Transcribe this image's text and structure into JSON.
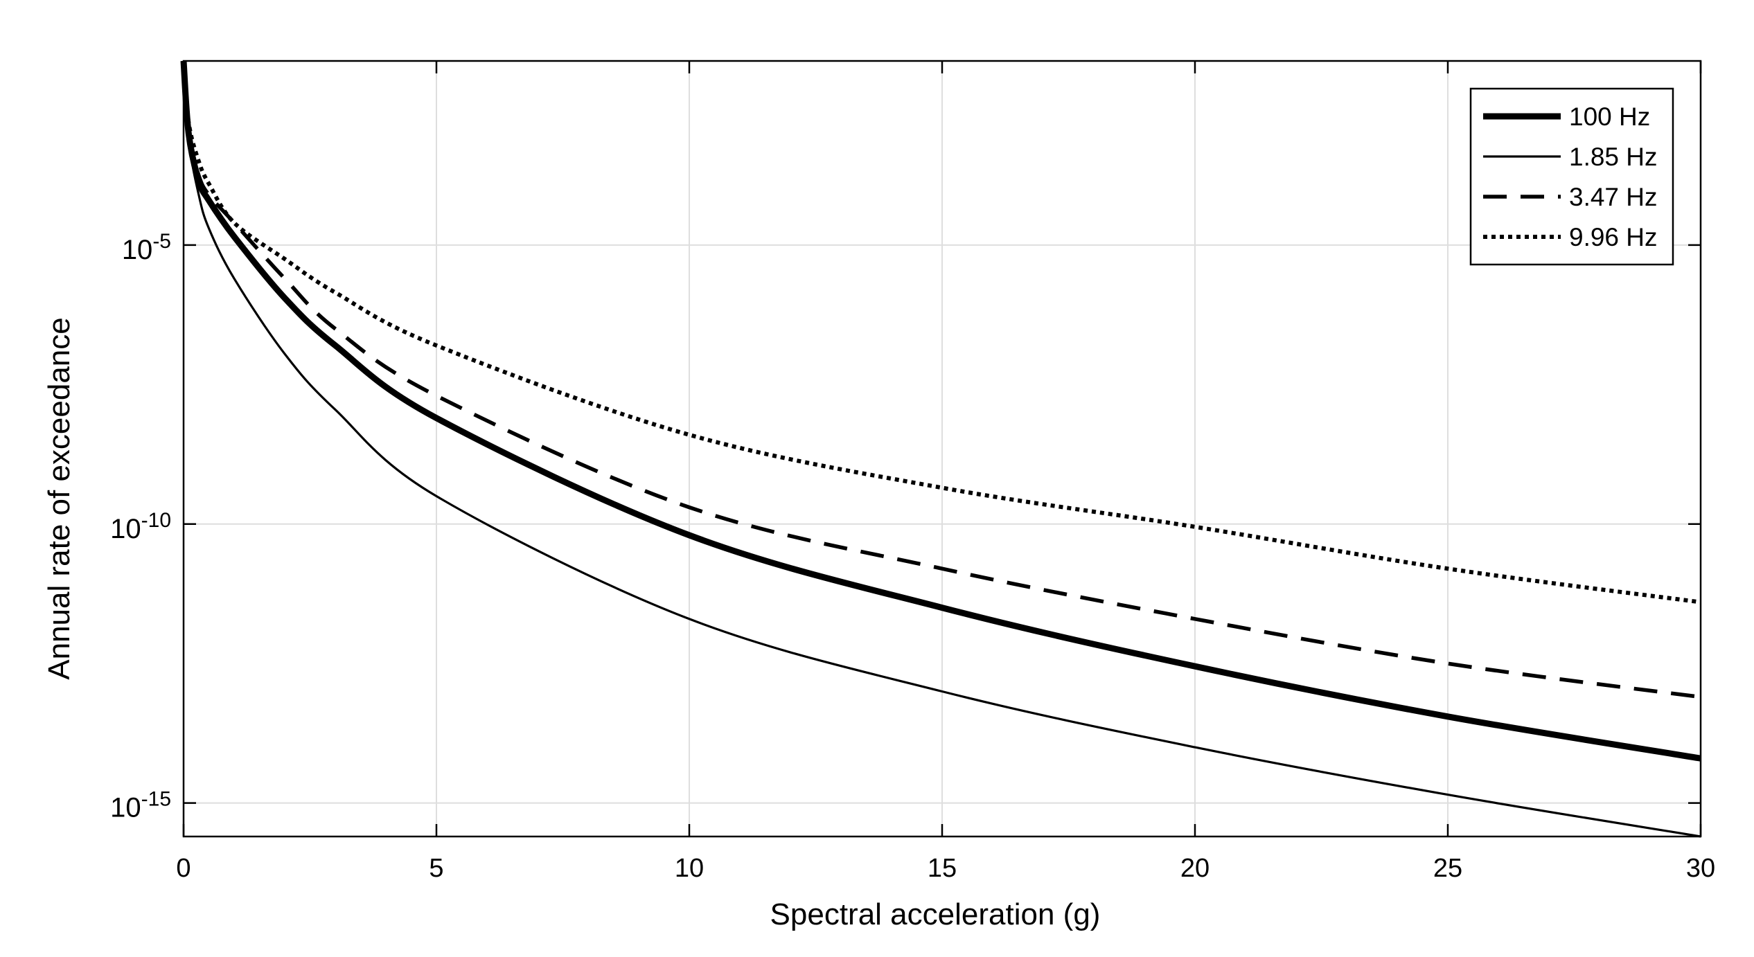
{
  "chart_data": {
    "type": "line",
    "title": "",
    "xlabel": "Spectral acceleration (g)",
    "ylabel": "Annual rate of exceedance",
    "xlim": [
      0,
      30
    ],
    "ylim_log10": [
      -15.6,
      -1.7
    ],
    "yscale": "log",
    "grid": true,
    "legend_position": "top-right",
    "x_ticks": [
      0,
      5,
      10,
      15,
      20,
      25,
      30
    ],
    "x_tick_labels": [
      "0",
      "5",
      "10",
      "15",
      "20",
      "25",
      "30"
    ],
    "y_ticks_log10": [
      -5,
      -10,
      -15
    ],
    "y_tick_base": "10",
    "y_tick_exponents": [
      "-5",
      "-10",
      "-15"
    ],
    "series": [
      {
        "name": "100 Hz",
        "style": "thick",
        "x": [
          0,
          0.1,
          0.3,
          0.5,
          1,
          2,
          3,
          5,
          10,
          15,
          20,
          25,
          30
        ],
        "log10_y": [
          -1.7,
          -3.0,
          -3.85,
          -4.2,
          -4.85,
          -5.95,
          -6.8,
          -8.1,
          -10.2,
          -11.5,
          -12.55,
          -13.45,
          -14.2
        ]
      },
      {
        "name": "1.85 Hz",
        "style": "thin",
        "x": [
          0,
          0.1,
          0.3,
          0.5,
          1,
          2,
          3,
          5,
          10,
          15,
          20,
          25,
          30
        ],
        "log10_y": [
          -1.7,
          -3.1,
          -4.1,
          -4.7,
          -5.6,
          -6.95,
          -7.95,
          -9.5,
          -11.7,
          -13.0,
          -14.0,
          -14.85,
          -15.6
        ]
      },
      {
        "name": "3.47 Hz",
        "style": "dashed",
        "x": [
          0,
          0.1,
          0.3,
          0.5,
          1,
          2,
          3,
          5,
          10,
          15,
          20,
          25,
          30
        ],
        "log10_y": [
          -1.7,
          -3.0,
          -3.75,
          -4.1,
          -4.6,
          -5.6,
          -6.5,
          -7.7,
          -9.7,
          -10.8,
          -11.7,
          -12.5,
          -13.1
        ]
      },
      {
        "name": "9.96 Hz",
        "style": "dotted",
        "x": [
          0,
          0.1,
          0.3,
          0.5,
          1,
          2,
          3,
          5,
          10,
          15,
          20,
          25,
          30
        ],
        "log10_y": [
          -1.7,
          -2.8,
          -3.5,
          -3.9,
          -4.6,
          -5.25,
          -5.85,
          -6.8,
          -8.4,
          -9.35,
          -10.05,
          -10.8,
          -11.4
        ]
      }
    ]
  }
}
